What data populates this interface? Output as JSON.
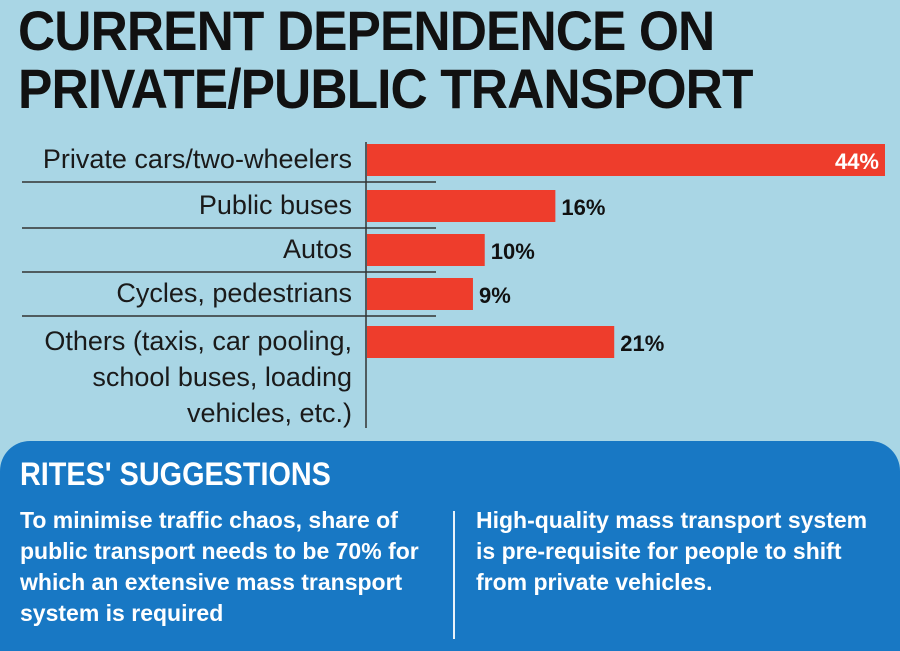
{
  "title": {
    "line1": "CURRENT DEPENDENCE ON",
    "line2": "PRIVATE/PUBLIC TRANSPORT"
  },
  "chart_data": {
    "type": "bar",
    "orientation": "horizontal",
    "categories": [
      [
        "Private cars/two-wheelers"
      ],
      [
        "Public buses"
      ],
      [
        "Autos"
      ],
      [
        "Cycles, pedestrians"
      ],
      [
        "Others (taxis, car pooling,",
        "school buses, loading",
        "vehicles, etc.)"
      ]
    ],
    "values": [
      44,
      16,
      10,
      9,
      21
    ],
    "value_labels": [
      "44%",
      "16%",
      "10%",
      "9%",
      "21%"
    ],
    "xlim": [
      0,
      44
    ],
    "bar_color": "#ee3d2c",
    "grid": false
  },
  "suggestions": {
    "heading": "RITES' SUGGESTIONS",
    "left_text": "To minimise traffic chaos, share of public transport needs to be 70% for which an extensive mass transport system is required",
    "right_text": "High-quality mass transport system is pre-requisite for people to shift from private vehicles.",
    "background_color": "#1878c4"
  }
}
